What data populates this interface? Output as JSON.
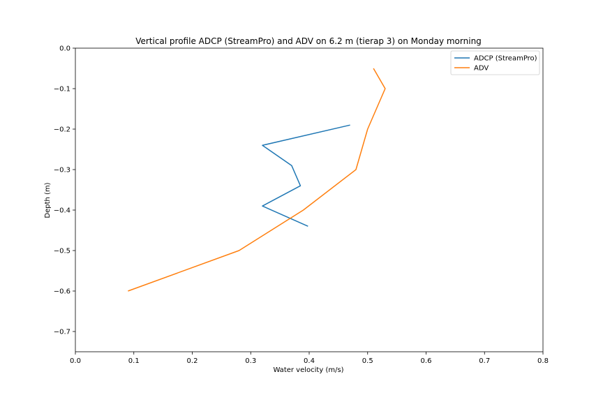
{
  "chart_data": {
    "type": "line",
    "title": "Vertical profile ADCP (StreamPro) and ADV on 6.2 m (tierap 3) on Monday morning",
    "xlabel": "Water velocity (m/s)",
    "ylabel": "Depth (m)",
    "xlim": [
      0.0,
      0.8
    ],
    "ylim": [
      -0.75,
      0.0
    ],
    "xticks": [
      "0.0",
      "0.1",
      "0.2",
      "0.3",
      "0.4",
      "0.5",
      "0.6",
      "0.7",
      "0.8"
    ],
    "yticks": [
      "0.0",
      "−0.1",
      "−0.2",
      "−0.3",
      "−0.4",
      "−0.5",
      "−0.6",
      "−0.7"
    ],
    "grid": false,
    "legend_position": "top-right",
    "series": [
      {
        "name": "ADCP (StreamPro)",
        "color": "#1f77b4",
        "x": [
          0.47,
          0.32,
          0.37,
          0.385,
          0.32,
          0.398
        ],
        "y": [
          -0.19,
          -0.24,
          -0.29,
          -0.34,
          -0.39,
          -0.44
        ]
      },
      {
        "name": "ADV",
        "color": "#ff7f0e",
        "x": [
          0.51,
          0.53,
          0.5,
          0.48,
          0.39,
          0.28,
          0.09
        ],
        "y": [
          -0.05,
          -0.1,
          -0.2,
          -0.3,
          -0.4,
          -0.5,
          -0.6
        ]
      }
    ]
  }
}
